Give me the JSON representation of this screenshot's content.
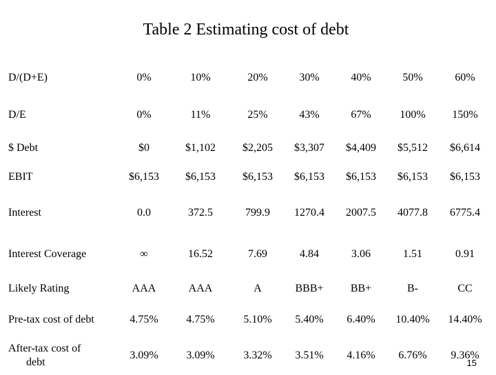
{
  "title": "Table 2  Estimating cost of debt",
  "rows": [
    {
      "label": "D/(D+E)",
      "values": [
        "0%",
        "10%",
        "20%",
        "30%",
        "40%",
        "50%",
        "60%"
      ]
    },
    {
      "label": "D/E",
      "values": [
        "0%",
        "11%",
        "25%",
        "43%",
        "67%",
        "100%",
        "150%"
      ]
    },
    {
      "label": "$ Debt",
      "values": [
        "$0",
        "$1,102",
        "$2,205",
        "$3,307",
        "$4,409",
        "$5,512",
        "$6,614"
      ]
    },
    {
      "label": "EBIT",
      "values": [
        "$6,153",
        "$6,153",
        "$6,153",
        "$6,153",
        "$6,153",
        "$6,153",
        "$6,153"
      ]
    },
    {
      "label": "Interest",
      "values": [
        "0.0",
        "372.5",
        "799.9",
        "1270.4",
        "2007.5",
        "4077.8",
        "6775.4"
      ]
    },
    {
      "label": "Interest Coverage",
      "values": [
        "∞",
        "16.52",
        "7.69",
        "4.84",
        "3.06",
        "1.51",
        "0.91"
      ]
    },
    {
      "label": "Likely Rating",
      "values": [
        "AAA",
        "AAA",
        "A",
        "BBB+",
        "BB+",
        "B-",
        "CC"
      ]
    },
    {
      "label": "Pre-tax cost of debt",
      "values": [
        "4.75%",
        "4.75%",
        "5.10%",
        "5.40%",
        "6.40%",
        "10.40%",
        "14.40%"
      ]
    },
    {
      "label_line1": "After-tax cost of",
      "label_line2": "debt",
      "values": [
        "3.09%",
        "3.09%",
        "3.32%",
        "3.51%",
        "4.16%",
        "6.76%",
        "9.36%"
      ]
    }
  ],
  "page_number": "15"
}
